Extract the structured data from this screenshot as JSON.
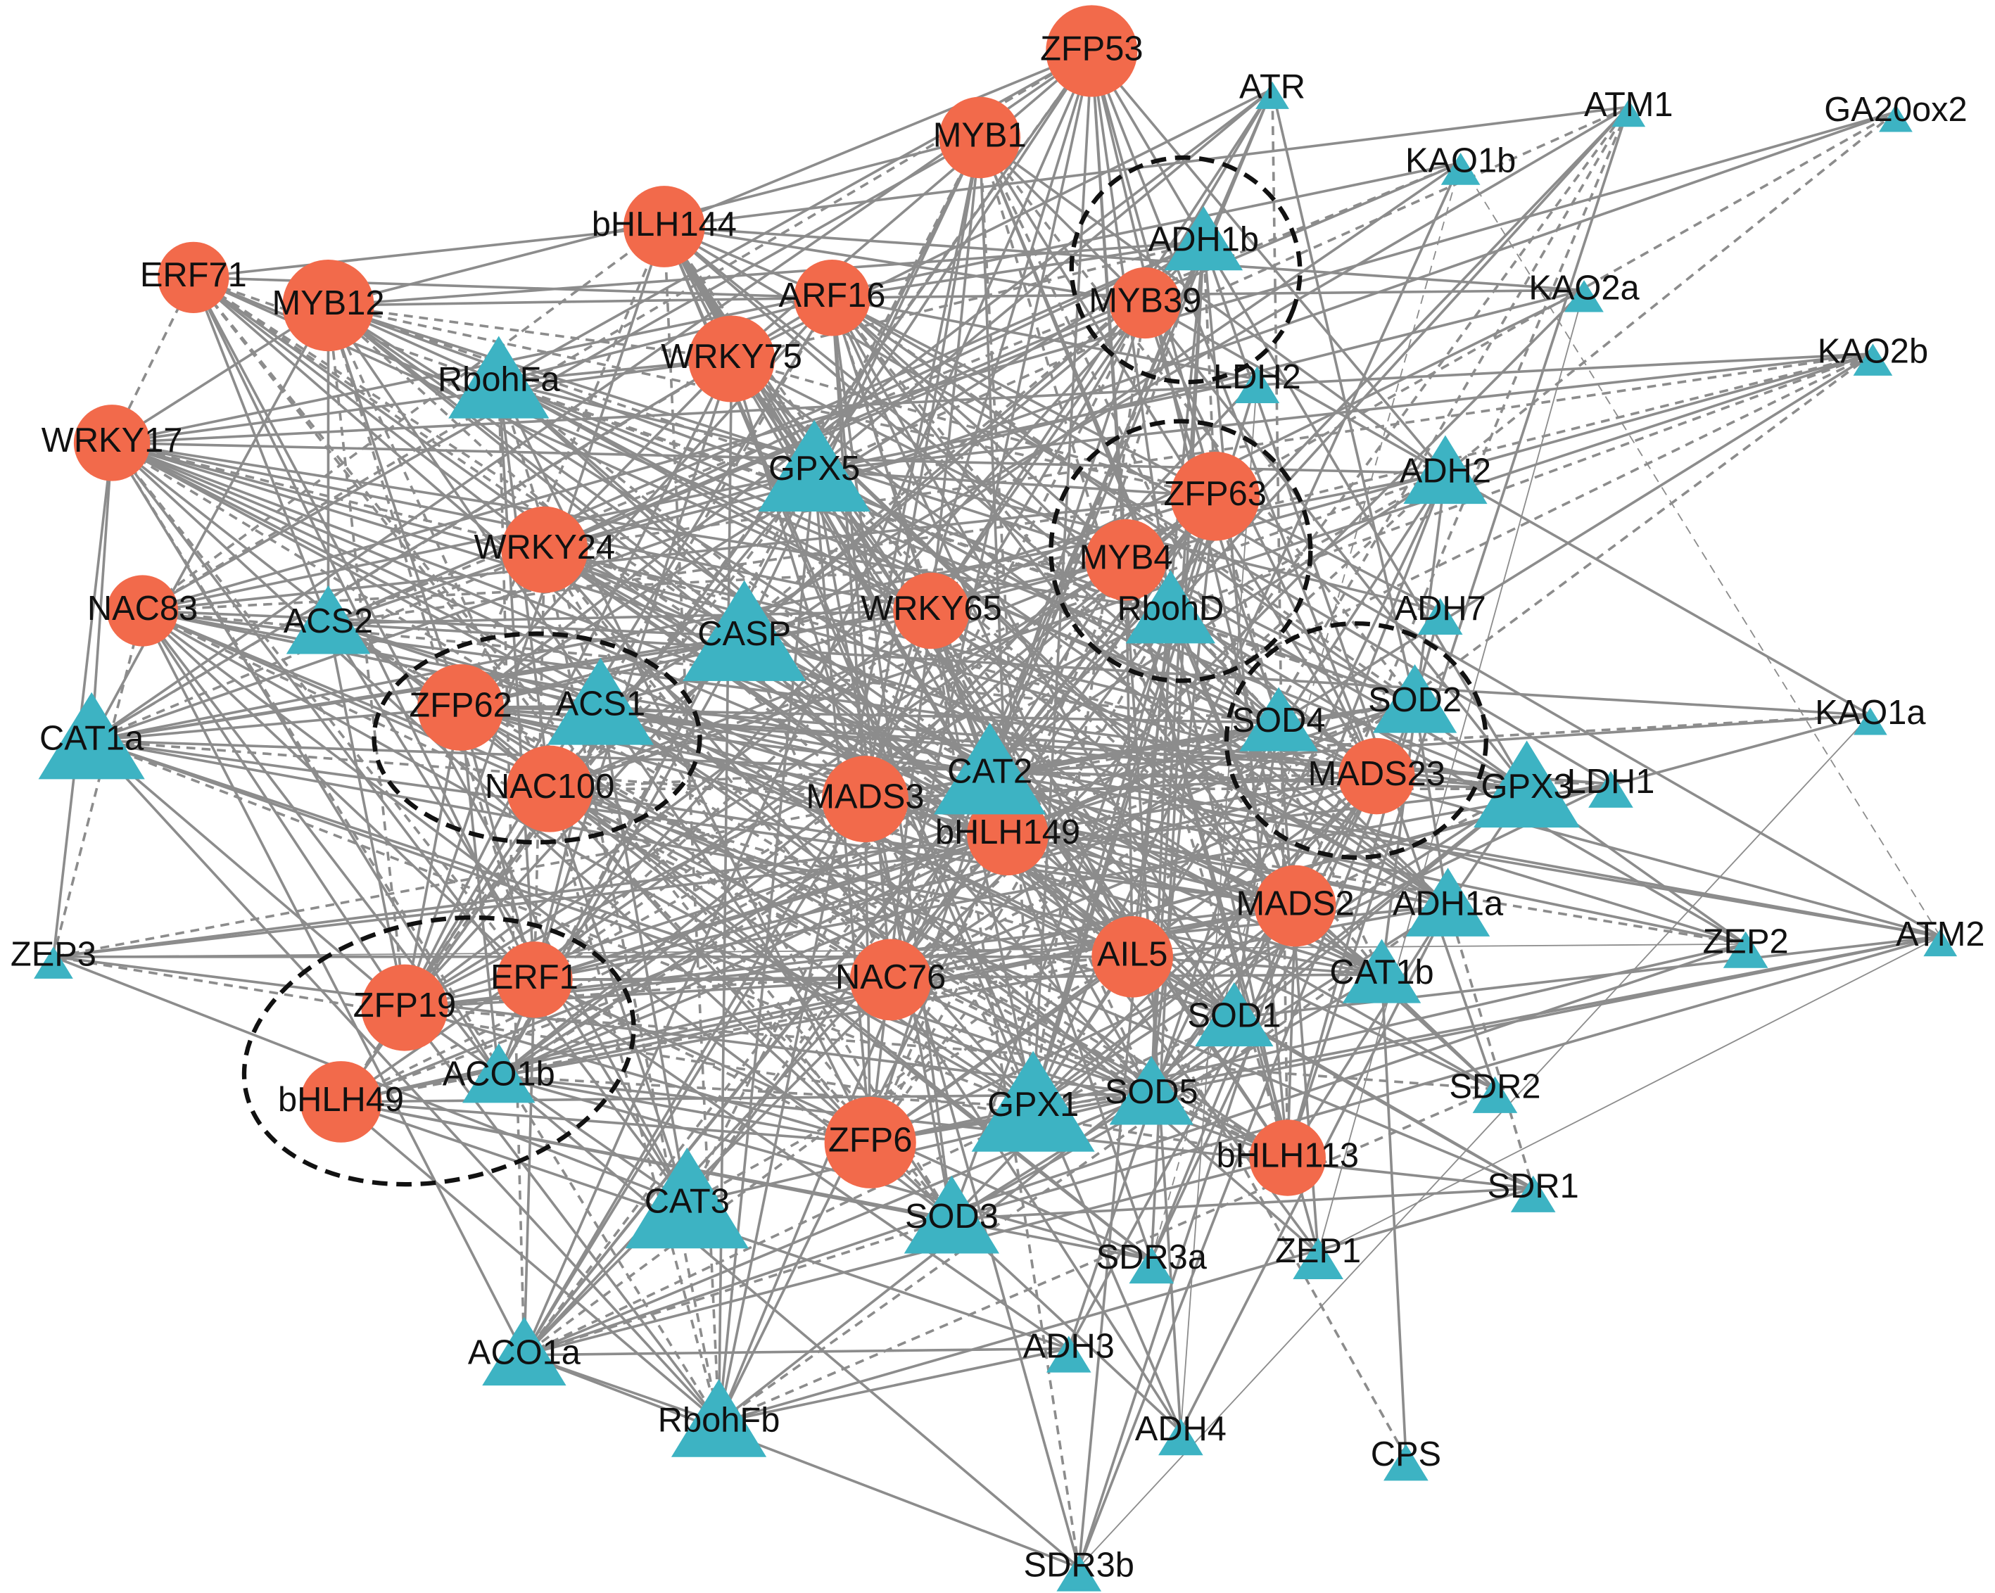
{
  "nodes": [
    {
      "label": "ZFP53"
    },
    {
      "label": "MYB1"
    },
    {
      "label": "bHLH144"
    },
    {
      "label": "ERF71"
    },
    {
      "label": "MYB12"
    },
    {
      "label": "ARF16"
    },
    {
      "label": "WRKY75"
    },
    {
      "label": "MYB39"
    },
    {
      "label": "WRKY17"
    },
    {
      "label": "WRKY24"
    },
    {
      "label": "ZFP63"
    },
    {
      "label": "MYB4"
    },
    {
      "label": "NAC83"
    },
    {
      "label": "WRKY65"
    },
    {
      "label": "ZFP62"
    },
    {
      "label": "NAC100"
    },
    {
      "label": "MADS3"
    },
    {
      "label": "bHLH149"
    },
    {
      "label": "MADS23"
    },
    {
      "label": "MADS2"
    },
    {
      "label": "AIL5"
    },
    {
      "label": "NAC76"
    },
    {
      "label": "ERF1"
    },
    {
      "label": "ZFP19"
    },
    {
      "label": "bHLH49"
    },
    {
      "label": "ZFP6"
    },
    {
      "label": "bHLH113"
    },
    {
      "label": "ATR"
    },
    {
      "label": "ATM1"
    },
    {
      "label": "GA20ox2"
    },
    {
      "label": "KAO1b"
    },
    {
      "label": "ADH1b"
    },
    {
      "label": "KAO2a"
    },
    {
      "label": "RbohFa"
    },
    {
      "label": "LDH2"
    },
    {
      "label": "KAO2b"
    },
    {
      "label": "GPX5"
    },
    {
      "label": "ADH2"
    },
    {
      "label": "ACS2"
    },
    {
      "label": "CASP"
    },
    {
      "label": "RbohD"
    },
    {
      "label": "ADH7"
    },
    {
      "label": "SOD2"
    },
    {
      "label": "SOD4"
    },
    {
      "label": "ACS1"
    },
    {
      "label": "CAT1a"
    },
    {
      "label": "KAO1a"
    },
    {
      "label": "CAT2"
    },
    {
      "label": "GPX3"
    },
    {
      "label": "LDH1"
    },
    {
      "label": "ADH1a"
    },
    {
      "label": "ZEP2"
    },
    {
      "label": "ATM2"
    },
    {
      "label": "ZEP3"
    },
    {
      "label": "CAT1b"
    },
    {
      "label": "SOD1"
    },
    {
      "label": "SOD5"
    },
    {
      "label": "ACO1b"
    },
    {
      "label": "GPX1"
    },
    {
      "label": "CAT3"
    },
    {
      "label": "SOD3"
    },
    {
      "label": "SDR2"
    },
    {
      "label": "SDR1"
    },
    {
      "label": "SDR3a"
    },
    {
      "label": "ZEP1"
    },
    {
      "label": "ACO1a"
    },
    {
      "label": "ADH3"
    },
    {
      "label": "RbohFb"
    },
    {
      "label": "ADH4"
    },
    {
      "label": "CPS"
    },
    {
      "label": "SDR3b"
    }
  ]
}
